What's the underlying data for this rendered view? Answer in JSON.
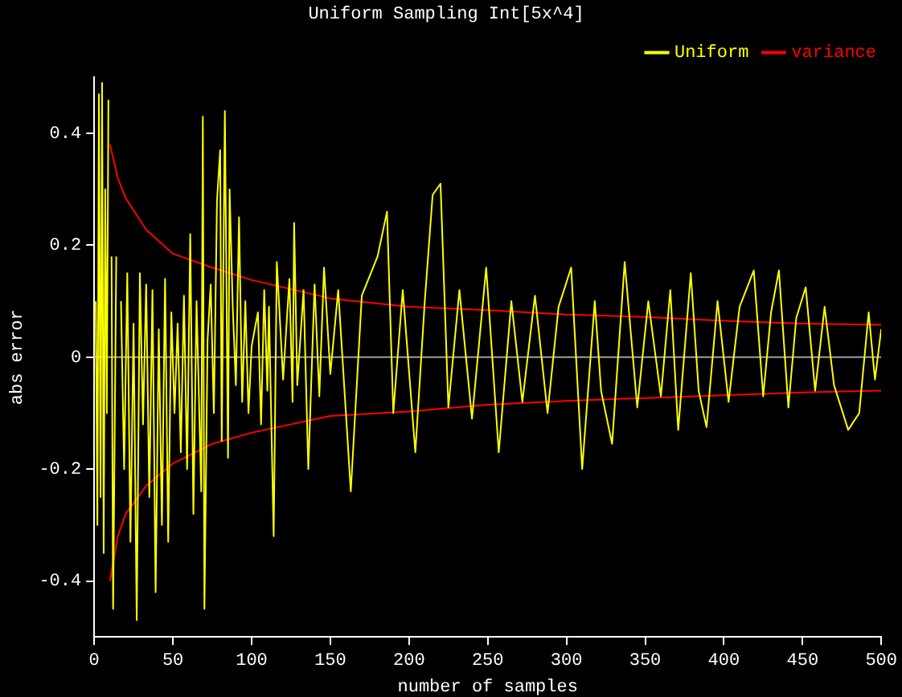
{
  "chart_data": {
    "type": "line",
    "title": "Uniform Sampling Int[5x^4]",
    "xlabel": "number of samples",
    "ylabel": "abs error",
    "xlim": [
      0,
      500
    ],
    "xticks": [
      0,
      50,
      100,
      150,
      200,
      250,
      300,
      350,
      400,
      450,
      500
    ],
    "ylim": [
      -0.5,
      0.5
    ],
    "yticks": [
      -0.4,
      -0.2,
      0,
      0.2,
      0.4
    ],
    "grid": false,
    "legend": "top right",
    "marker": "none",
    "line_style": "solid",
    "ref_lines": [
      {
        "axis": "y",
        "value": 0,
        "color": "#a0a0a0"
      }
    ],
    "series": [
      {
        "name": "Uniform",
        "color": "#ffff00",
        "x": [
          1,
          2,
          3,
          4,
          5,
          6,
          7,
          8,
          9,
          10,
          11,
          12,
          14,
          15,
          17,
          19,
          21,
          23,
          25,
          27,
          29,
          31,
          33,
          35,
          37,
          39,
          41,
          43,
          45,
          47,
          49,
          51,
          53,
          55,
          57,
          59,
          61,
          63,
          65,
          68,
          69,
          70,
          72,
          74,
          76,
          78,
          80,
          81,
          83,
          85,
          86,
          88,
          90,
          92,
          94,
          96,
          98,
          100,
          104,
          106,
          108,
          110,
          111,
          114,
          116,
          120,
          124,
          126,
          127,
          129,
          133,
          136,
          140,
          143,
          146,
          150,
          155,
          163,
          170,
          180,
          186,
          190,
          196,
          204,
          210,
          215,
          220,
          225,
          232,
          240,
          249,
          257,
          265,
          272,
          280,
          288,
          295,
          303,
          310,
          318,
          322,
          329,
          337,
          345,
          352,
          360,
          366,
          371,
          379,
          384,
          389,
          396,
          403,
          410,
          419,
          425,
          430,
          435,
          441,
          446,
          452,
          458,
          464,
          470,
          479,
          486,
          492,
          496,
          500
        ],
        "values": [
          0.1,
          -0.3,
          0.47,
          -0.25,
          0.49,
          -0.35,
          0.3,
          -0.1,
          0.46,
          null,
          0.18,
          -0.45,
          0.18,
          null,
          0.1,
          -0.2,
          0.15,
          -0.33,
          0.06,
          -0.47,
          0.15,
          -0.12,
          0.13,
          -0.25,
          0.12,
          -0.42,
          0.05,
          -0.3,
          0.14,
          -0.33,
          0.08,
          -0.1,
          0.06,
          -0.17,
          0.11,
          -0.2,
          0.22,
          -0.28,
          0.1,
          -0.24,
          0.43,
          -0.45,
          0.03,
          0.13,
          -0.1,
          0.28,
          0.37,
          -0.15,
          0.44,
          -0.18,
          0.3,
          0.09,
          -0.05,
          0.25,
          -0.08,
          0.1,
          -0.1,
          0.02,
          0.08,
          -0.12,
          0.12,
          -0.06,
          0.09,
          -0.32,
          0.17,
          -0.04,
          0.14,
          -0.08,
          0.24,
          -0.05,
          0.12,
          -0.2,
          0.13,
          -0.07,
          0.16,
          -0.03,
          0.12,
          -0.24,
          0.11,
          0.18,
          0.26,
          -0.1,
          0.12,
          -0.17,
          0.1,
          0.29,
          0.31,
          -0.09,
          0.12,
          -0.11,
          0.16,
          -0.17,
          0.1,
          -0.08,
          0.11,
          -0.1,
          0.09,
          0.16,
          -0.2,
          0.1,
          -0.06,
          -0.155,
          0.17,
          -0.09,
          0.1,
          -0.07,
          0.12,
          -0.13,
          0.15,
          -0.06,
          -0.125,
          0.1,
          -0.08,
          0.09,
          0.155,
          -0.07,
          0.08,
          0.155,
          -0.09,
          0.07,
          0.125,
          -0.06,
          0.09,
          -0.05,
          -0.13,
          -0.1,
          0.08,
          -0.04,
          0.05
        ]
      },
      {
        "name": "variance",
        "color": "#ff0000",
        "x": [
          10,
          15,
          20,
          33,
          50,
          75,
          100,
          150,
          200,
          250,
          300,
          350,
          400,
          450,
          500
        ],
        "values": [
          0.38,
          0.32,
          0.284,
          0.228,
          0.185,
          0.16,
          0.138,
          0.105,
          0.09,
          0.084,
          0.076,
          0.072,
          0.065,
          0.06,
          0.058
        ]
      },
      {
        "color": "#ff0000",
        "x": [
          10,
          15,
          20,
          33,
          50,
          75,
          100,
          150,
          200,
          250,
          300,
          350,
          400,
          450,
          500
        ],
        "values": [
          -0.4,
          -0.32,
          -0.28,
          -0.23,
          -0.19,
          -0.155,
          -0.135,
          -0.105,
          -0.097,
          -0.085,
          -0.078,
          -0.073,
          -0.068,
          -0.063,
          -0.06
        ]
      }
    ]
  }
}
